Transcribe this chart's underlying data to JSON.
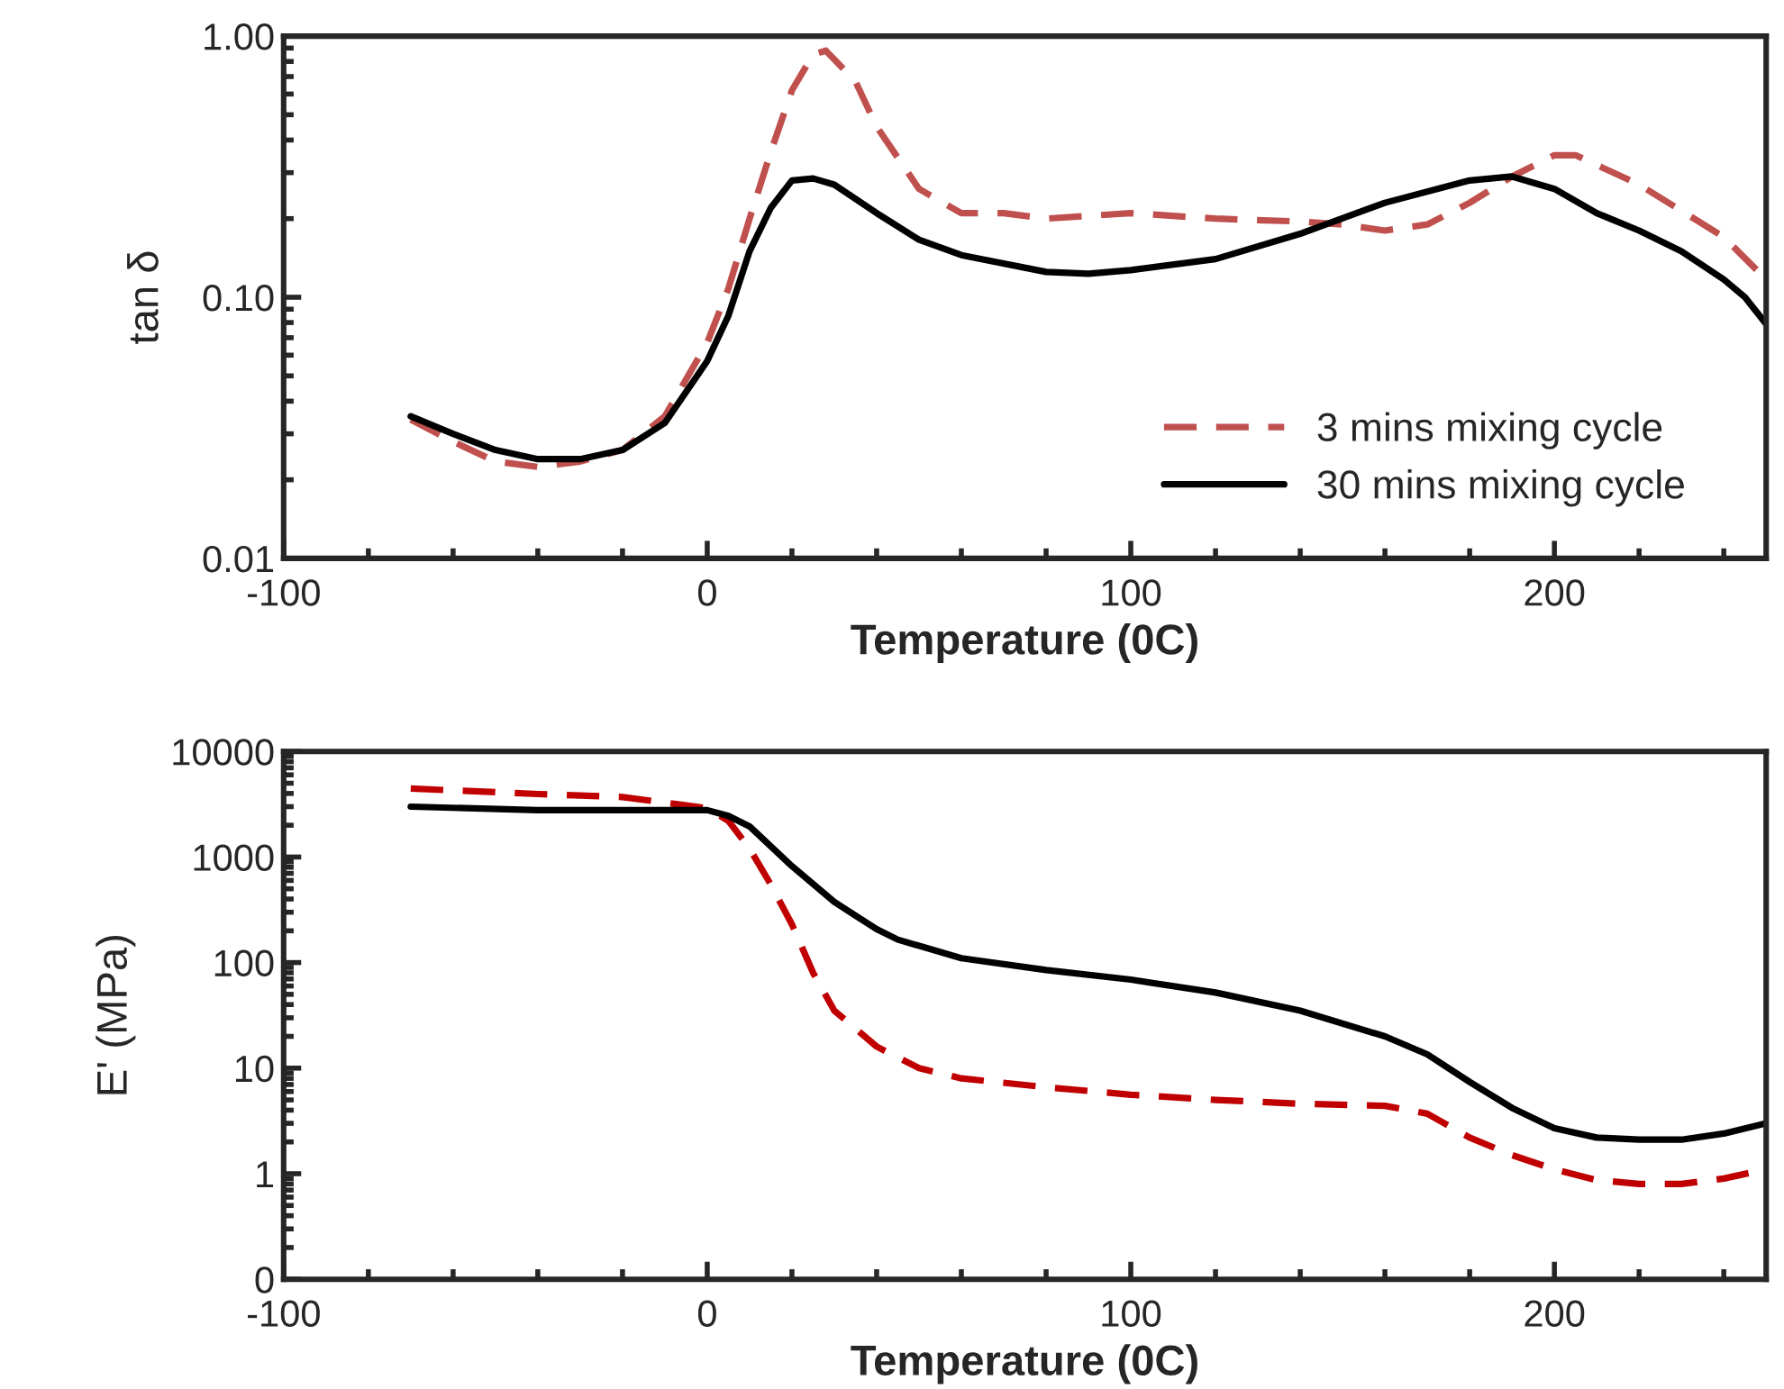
{
  "chart_data": [
    {
      "type": "line",
      "xlabel": "Temperature (0C)",
      "ylabel": "tan δ",
      "log": "y",
      "xlim": [
        -100,
        250
      ],
      "xticks": [
        -100,
        0,
        100,
        200
      ],
      "ylim": [
        0.01,
        1
      ],
      "yticks": [
        {
          "value": 0.01,
          "label": "0.01"
        },
        {
          "value": 0.1,
          "label": "0.10"
        },
        {
          "value": 1,
          "label": "1.00"
        }
      ],
      "grid": false,
      "legend": "bottom right",
      "series": [
        {
          "name": "3 mins mixing cycle",
          "color": "#c0504d",
          "line_style": "dashed",
          "x": [
            -70,
            -60,
            -50,
            -40,
            -30,
            -20,
            -10,
            0,
            5,
            10,
            15,
            20,
            25,
            28,
            35,
            40,
            50,
            60,
            70,
            80,
            100,
            120,
            140,
            150,
            160,
            170,
            180,
            190,
            200,
            205,
            220,
            240,
            250
          ],
          "values": [
            0.034,
            0.028,
            0.0235,
            0.0224,
            0.0235,
            0.026,
            0.035,
            0.067,
            0.108,
            0.2,
            0.36,
            0.62,
            0.85,
            0.88,
            0.67,
            0.45,
            0.26,
            0.21,
            0.21,
            0.2,
            0.21,
            0.2,
            0.195,
            0.19,
            0.18,
            0.19,
            0.23,
            0.29,
            0.35,
            0.35,
            0.27,
            0.17,
            0.117
          ]
        },
        {
          "name": "30 mins mixing cycle",
          "color": "#000000",
          "line_style": "solid",
          "x": [
            -70,
            -60,
            -50,
            -40,
            -30,
            -20,
            -10,
            0,
            5,
            10,
            15,
            20,
            25,
            30,
            40,
            50,
            60,
            80,
            90,
            100,
            120,
            140,
            160,
            180,
            190,
            200,
            210,
            220,
            230,
            240,
            245,
            250
          ],
          "values": [
            0.035,
            0.03,
            0.026,
            0.024,
            0.024,
            0.026,
            0.033,
            0.057,
            0.085,
            0.15,
            0.22,
            0.28,
            0.285,
            0.27,
            0.21,
            0.166,
            0.145,
            0.125,
            0.123,
            0.127,
            0.14,
            0.175,
            0.23,
            0.28,
            0.29,
            0.26,
            0.21,
            0.18,
            0.15,
            0.117,
            0.1,
            0.079
          ]
        }
      ]
    },
    {
      "type": "line",
      "xlabel": "Temperature (0C)",
      "ylabel": "E' (MPa)",
      "log": "y",
      "xlim": [
        -100,
        250
      ],
      "xticks": [
        -100,
        0,
        100,
        200
      ],
      "ylim": [
        0.1,
        10000
      ],
      "yticks": [
        {
          "value": 0.1,
          "label": "0"
        },
        1,
        10,
        100,
        1000,
        10000
      ],
      "grid": false,
      "series": [
        {
          "color": "#c00000",
          "line_style": "dashed",
          "x": [
            -70,
            -40,
            -20,
            0,
            5,
            10,
            15,
            20,
            25,
            30,
            40,
            50,
            60,
            80,
            100,
            120,
            140,
            160,
            170,
            180,
            190,
            200,
            210,
            220,
            230,
            240,
            250
          ],
          "values": [
            4450,
            3950,
            3700,
            2900,
            2200,
            1200,
            550,
            230,
            80,
            35,
            16,
            10,
            8,
            6.6,
            5.6,
            5,
            4.6,
            4.4,
            3.7,
            2.2,
            1.5,
            1.1,
            0.87,
            0.8,
            0.8,
            0.9,
            1.1
          ]
        },
        {
          "color": "#000000",
          "line_style": "solid",
          "x": [
            -70,
            -40,
            -20,
            0,
            5,
            10,
            20,
            30,
            40,
            45,
            60,
            80,
            100,
            120,
            140,
            160,
            170,
            180,
            190,
            200,
            210,
            220,
            230,
            240,
            250
          ],
          "values": [
            3000,
            2780,
            2780,
            2780,
            2450,
            1950,
            820,
            375,
            207,
            165,
            110,
            85,
            69,
            52,
            35,
            20,
            13.5,
            7.4,
            4.2,
            2.7,
            2.2,
            2.1,
            2.1,
            2.4,
            3
          ]
        }
      ]
    }
  ]
}
